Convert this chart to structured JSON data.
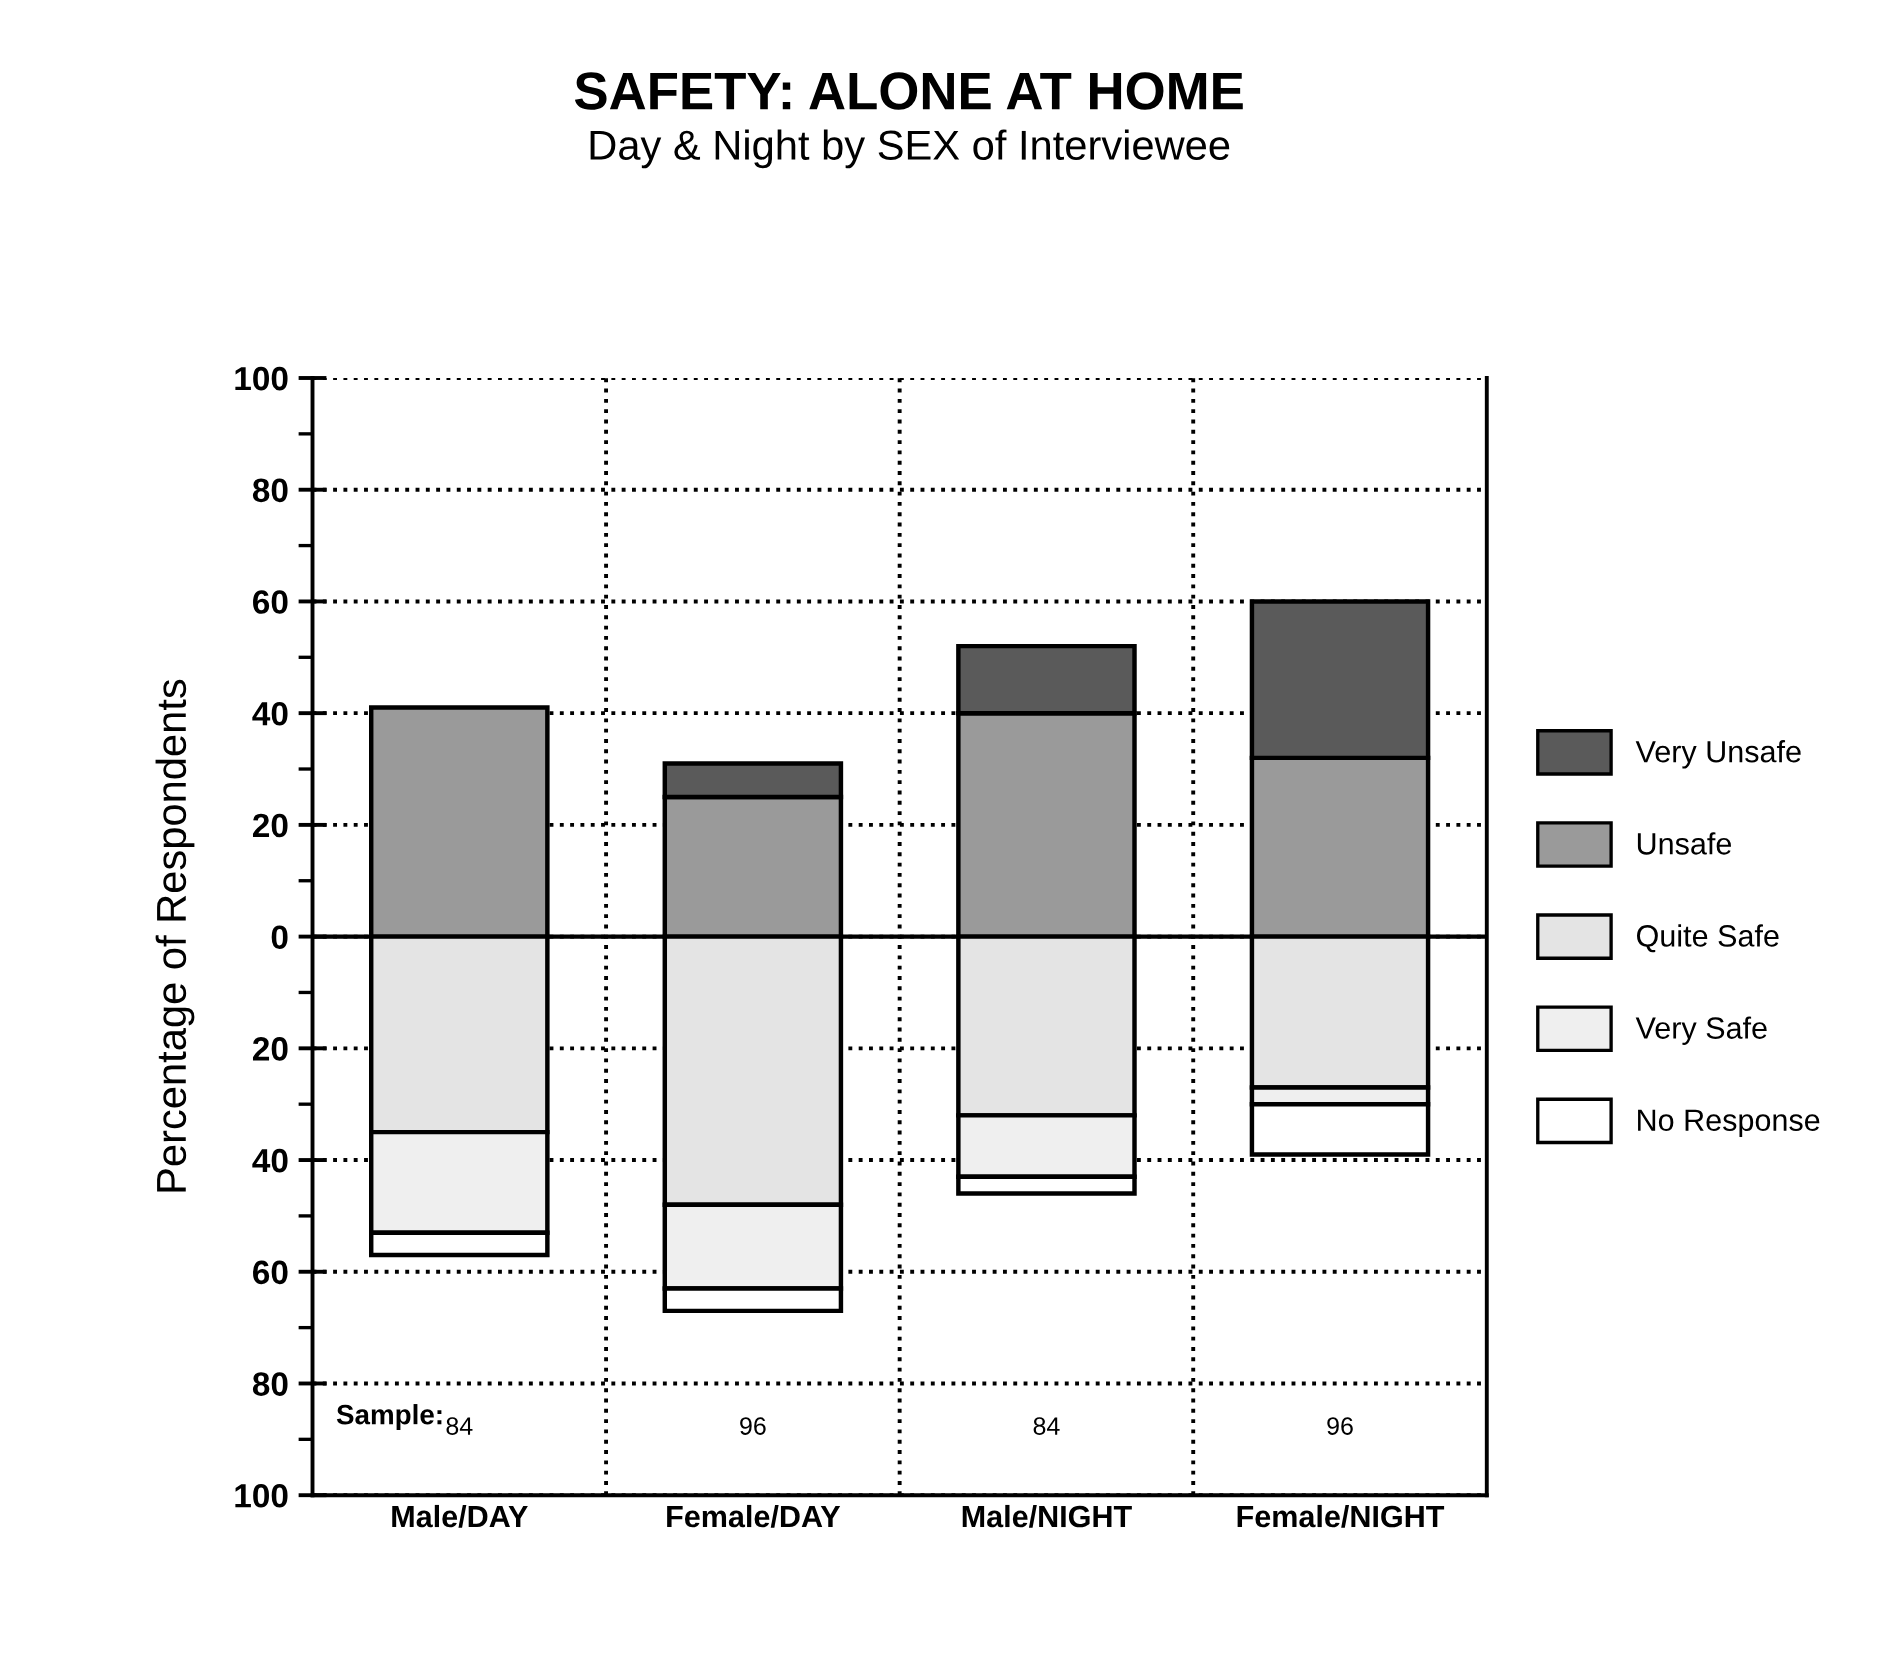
{
  "chart_data": {
    "type": "bar",
    "stacked": true,
    "title": "SAFETY: ALONE AT HOME",
    "subtitle": "Day & Night by SEX of Interviewee",
    "ylabel": "Percentage of Respondents",
    "categories": [
      "Male/DAY",
      "Female/DAY",
      "Male/NIGHT",
      "Female/NIGHT"
    ],
    "series": [
      {
        "name": "Unsafe",
        "color": "#9a9a9a",
        "values": [
          41,
          25,
          40,
          32
        ]
      },
      {
        "name": "Very Unsafe",
        "color": "#5a5a5a",
        "values": [
          0,
          6,
          12,
          28
        ]
      },
      {
        "name": "Quite Safe",
        "color": "#e4e4e4",
        "values": [
          -35,
          -48,
          -32,
          -27
        ]
      },
      {
        "name": "Very Safe",
        "color": "#efefef",
        "values": [
          -18,
          -15,
          -11,
          -3
        ]
      },
      {
        "name": "No Response",
        "color": "#ffffff",
        "values": [
          -4,
          -4,
          -3,
          -9
        ]
      }
    ],
    "ylim": [
      -100,
      100
    ],
    "yticks": [
      {
        "value": -100,
        "label": "100"
      },
      {
        "value": -90,
        "label": null
      },
      {
        "value": -80,
        "label": "80"
      },
      {
        "value": -70,
        "label": null
      },
      {
        "value": -60,
        "label": "60"
      },
      {
        "value": -50,
        "label": null
      },
      {
        "value": -40,
        "label": "40"
      },
      {
        "value": -30,
        "label": null
      },
      {
        "value": -20,
        "label": "20"
      },
      {
        "value": -10,
        "label": null
      },
      0,
      {
        "value": 10,
        "label": null
      },
      20,
      {
        "value": 30,
        "label": null
      },
      40,
      {
        "value": 50,
        "label": null
      },
      60,
      {
        "value": 70,
        "label": null
      },
      80,
      {
        "value": 90,
        "label": null
      },
      100
    ],
    "ref_lines": [
      {
        "axis": "y",
        "value": 0
      }
    ],
    "annotations": [
      "Sample:",
      "84",
      "96",
      "84",
      "96"
    ],
    "grid": true,
    "legend": "right"
  }
}
